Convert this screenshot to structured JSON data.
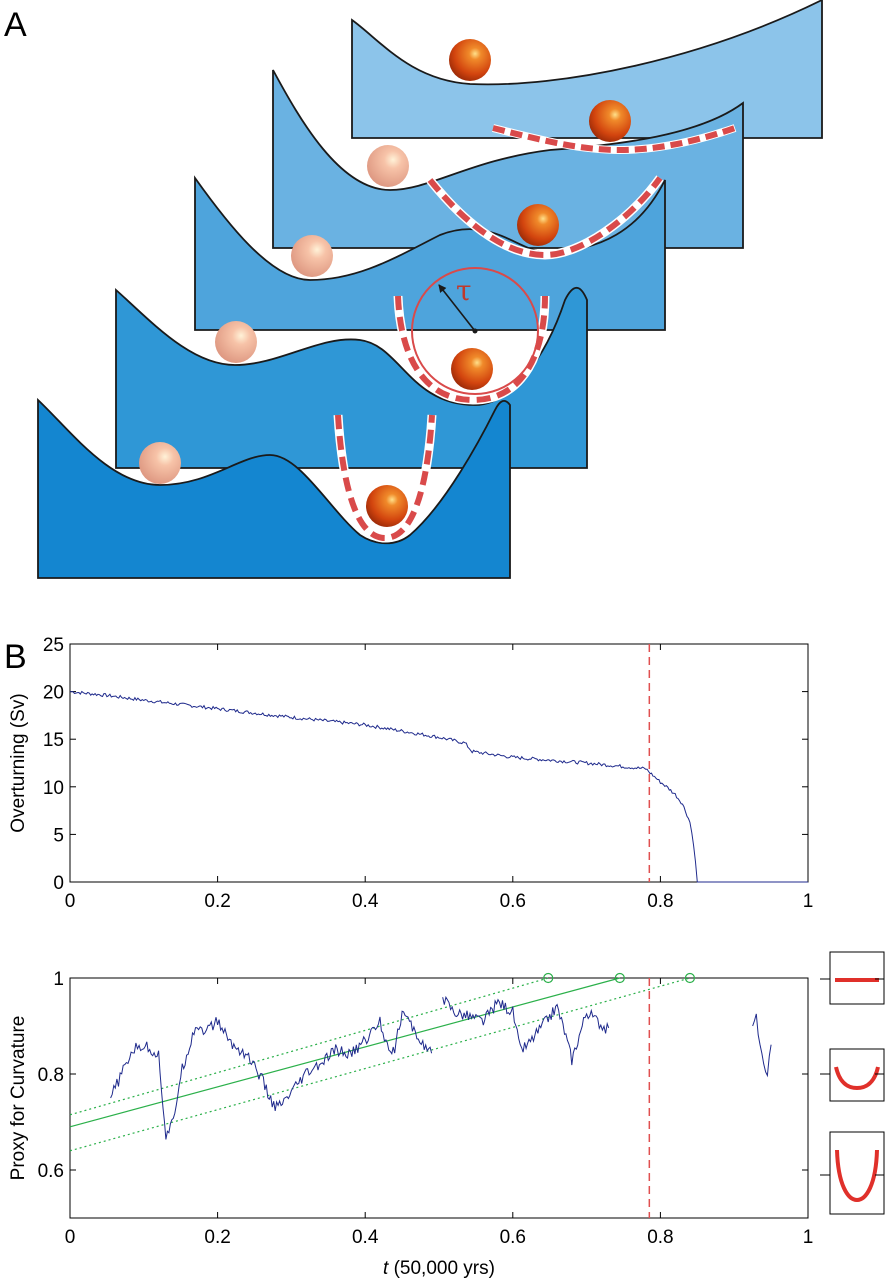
{
  "panel_a": {
    "label": "A",
    "tau_symbol": "τ",
    "colors": {
      "layer_fills": [
        "#8cc4ea",
        "#6ab2e2",
        "#4ea4dc",
        "#2f97d6",
        "#1486d0"
      ],
      "ball": "#e04a12",
      "ghost_ball": "#f2b39a",
      "curvature_dash": "#d94a4a"
    }
  },
  "panel_b": {
    "label": "B"
  },
  "chart_data": [
    {
      "type": "line",
      "ylabel": "Overturning (Sv)",
      "xlim": [
        0,
        1
      ],
      "ylim": [
        0,
        25
      ],
      "xticks": [
        "0",
        "0.2",
        "0.4",
        "0.6",
        "0.8",
        "1"
      ],
      "yticks": [
        "0",
        "5",
        "10",
        "15",
        "20",
        "25"
      ],
      "series": [
        {
          "color": "#1f2a8c",
          "x": [
            0,
            0.05,
            0.1,
            0.2,
            0.3,
            0.4,
            0.5,
            0.535,
            0.545,
            0.6,
            0.7,
            0.78,
            0.79,
            0.8,
            0.81,
            0.82,
            0.83,
            0.84,
            0.845,
            0.85,
            0.86,
            1.0
          ],
          "y": [
            20.0,
            19.6,
            19.1,
            18.2,
            17.3,
            16.5,
            15.2,
            14.6,
            13.7,
            13.1,
            12.5,
            11.9,
            11.2,
            10.5,
            9.9,
            9.2,
            8.2,
            6.3,
            4.0,
            0.0,
            0.0,
            0.0
          ]
        }
      ],
      "vline": {
        "x": 0.785,
        "color": "#e05050",
        "style": "dashed"
      },
      "grid": false
    },
    {
      "type": "line",
      "xlabel_italic": "t",
      "xlabel_rest": " (50,000 yrs)",
      "ylabel": "Proxy for Curvature",
      "xlim": [
        0,
        1
      ],
      "ylim": [
        0.5,
        1.0
      ],
      "xticks": [
        "0",
        "0.2",
        "0.4",
        "0.6",
        "0.8",
        "1"
      ],
      "yticks": [
        "0.6",
        "0.8",
        "1"
      ],
      "series": [
        {
          "color": "#1f2a8c",
          "x": [
            0.055,
            0.07,
            0.085,
            0.1,
            0.12,
            0.13,
            0.14,
            0.15,
            0.16,
            0.17,
            0.185,
            0.2,
            0.22,
            0.24,
            0.26,
            0.27,
            0.28,
            0.29,
            0.3,
            0.32,
            0.34,
            0.36,
            0.38,
            0.4,
            0.42,
            0.43,
            0.44,
            0.45,
            0.47,
            0.49
          ],
          "y": [
            0.75,
            0.8,
            0.85,
            0.86,
            0.84,
            0.67,
            0.7,
            0.8,
            0.85,
            0.9,
            0.89,
            0.91,
            0.86,
            0.84,
            0.79,
            0.75,
            0.73,
            0.74,
            0.76,
            0.8,
            0.82,
            0.85,
            0.84,
            0.87,
            0.91,
            0.86,
            0.85,
            0.93,
            0.88,
            0.84
          ]
        },
        {
          "color": "#1f2a8c",
          "x": [
            0.505,
            0.52,
            0.54,
            0.56,
            0.58,
            0.6,
            0.61,
            0.62,
            0.64,
            0.66,
            0.67,
            0.68,
            0.69,
            0.7,
            0.715,
            0.73
          ],
          "y": [
            0.96,
            0.93,
            0.92,
            0.91,
            0.95,
            0.93,
            0.85,
            0.86,
            0.9,
            0.94,
            0.89,
            0.83,
            0.88,
            0.93,
            0.91,
            0.89
          ]
        },
        {
          "color": "#1f2a8c",
          "x": [
            0.925,
            0.93,
            0.935,
            0.94,
            0.945,
            0.95
          ],
          "y": [
            0.9,
            0.92,
            0.86,
            0.82,
            0.8,
            0.87
          ]
        }
      ],
      "fit_line": {
        "x": [
          0,
          0.745
        ],
        "y": [
          0.69,
          1.0
        ],
        "color": "#2bb04a"
      },
      "conf_upper": {
        "x": [
          0,
          0.648
        ],
        "y": [
          0.715,
          1.0
        ],
        "color": "#2bb04a"
      },
      "conf_lower": {
        "x": [
          0,
          0.84
        ],
        "y": [
          0.64,
          1.0
        ],
        "color": "#2bb04a"
      },
      "markers": {
        "x": [
          0.648,
          0.745,
          0.84
        ],
        "y": [
          1.0,
          1.0,
          1.0
        ],
        "shape": "open-circle",
        "color": "#2bb04a"
      },
      "vline": {
        "x": 0.785,
        "color": "#e05050",
        "style": "dashed"
      },
      "grid": false
    }
  ]
}
